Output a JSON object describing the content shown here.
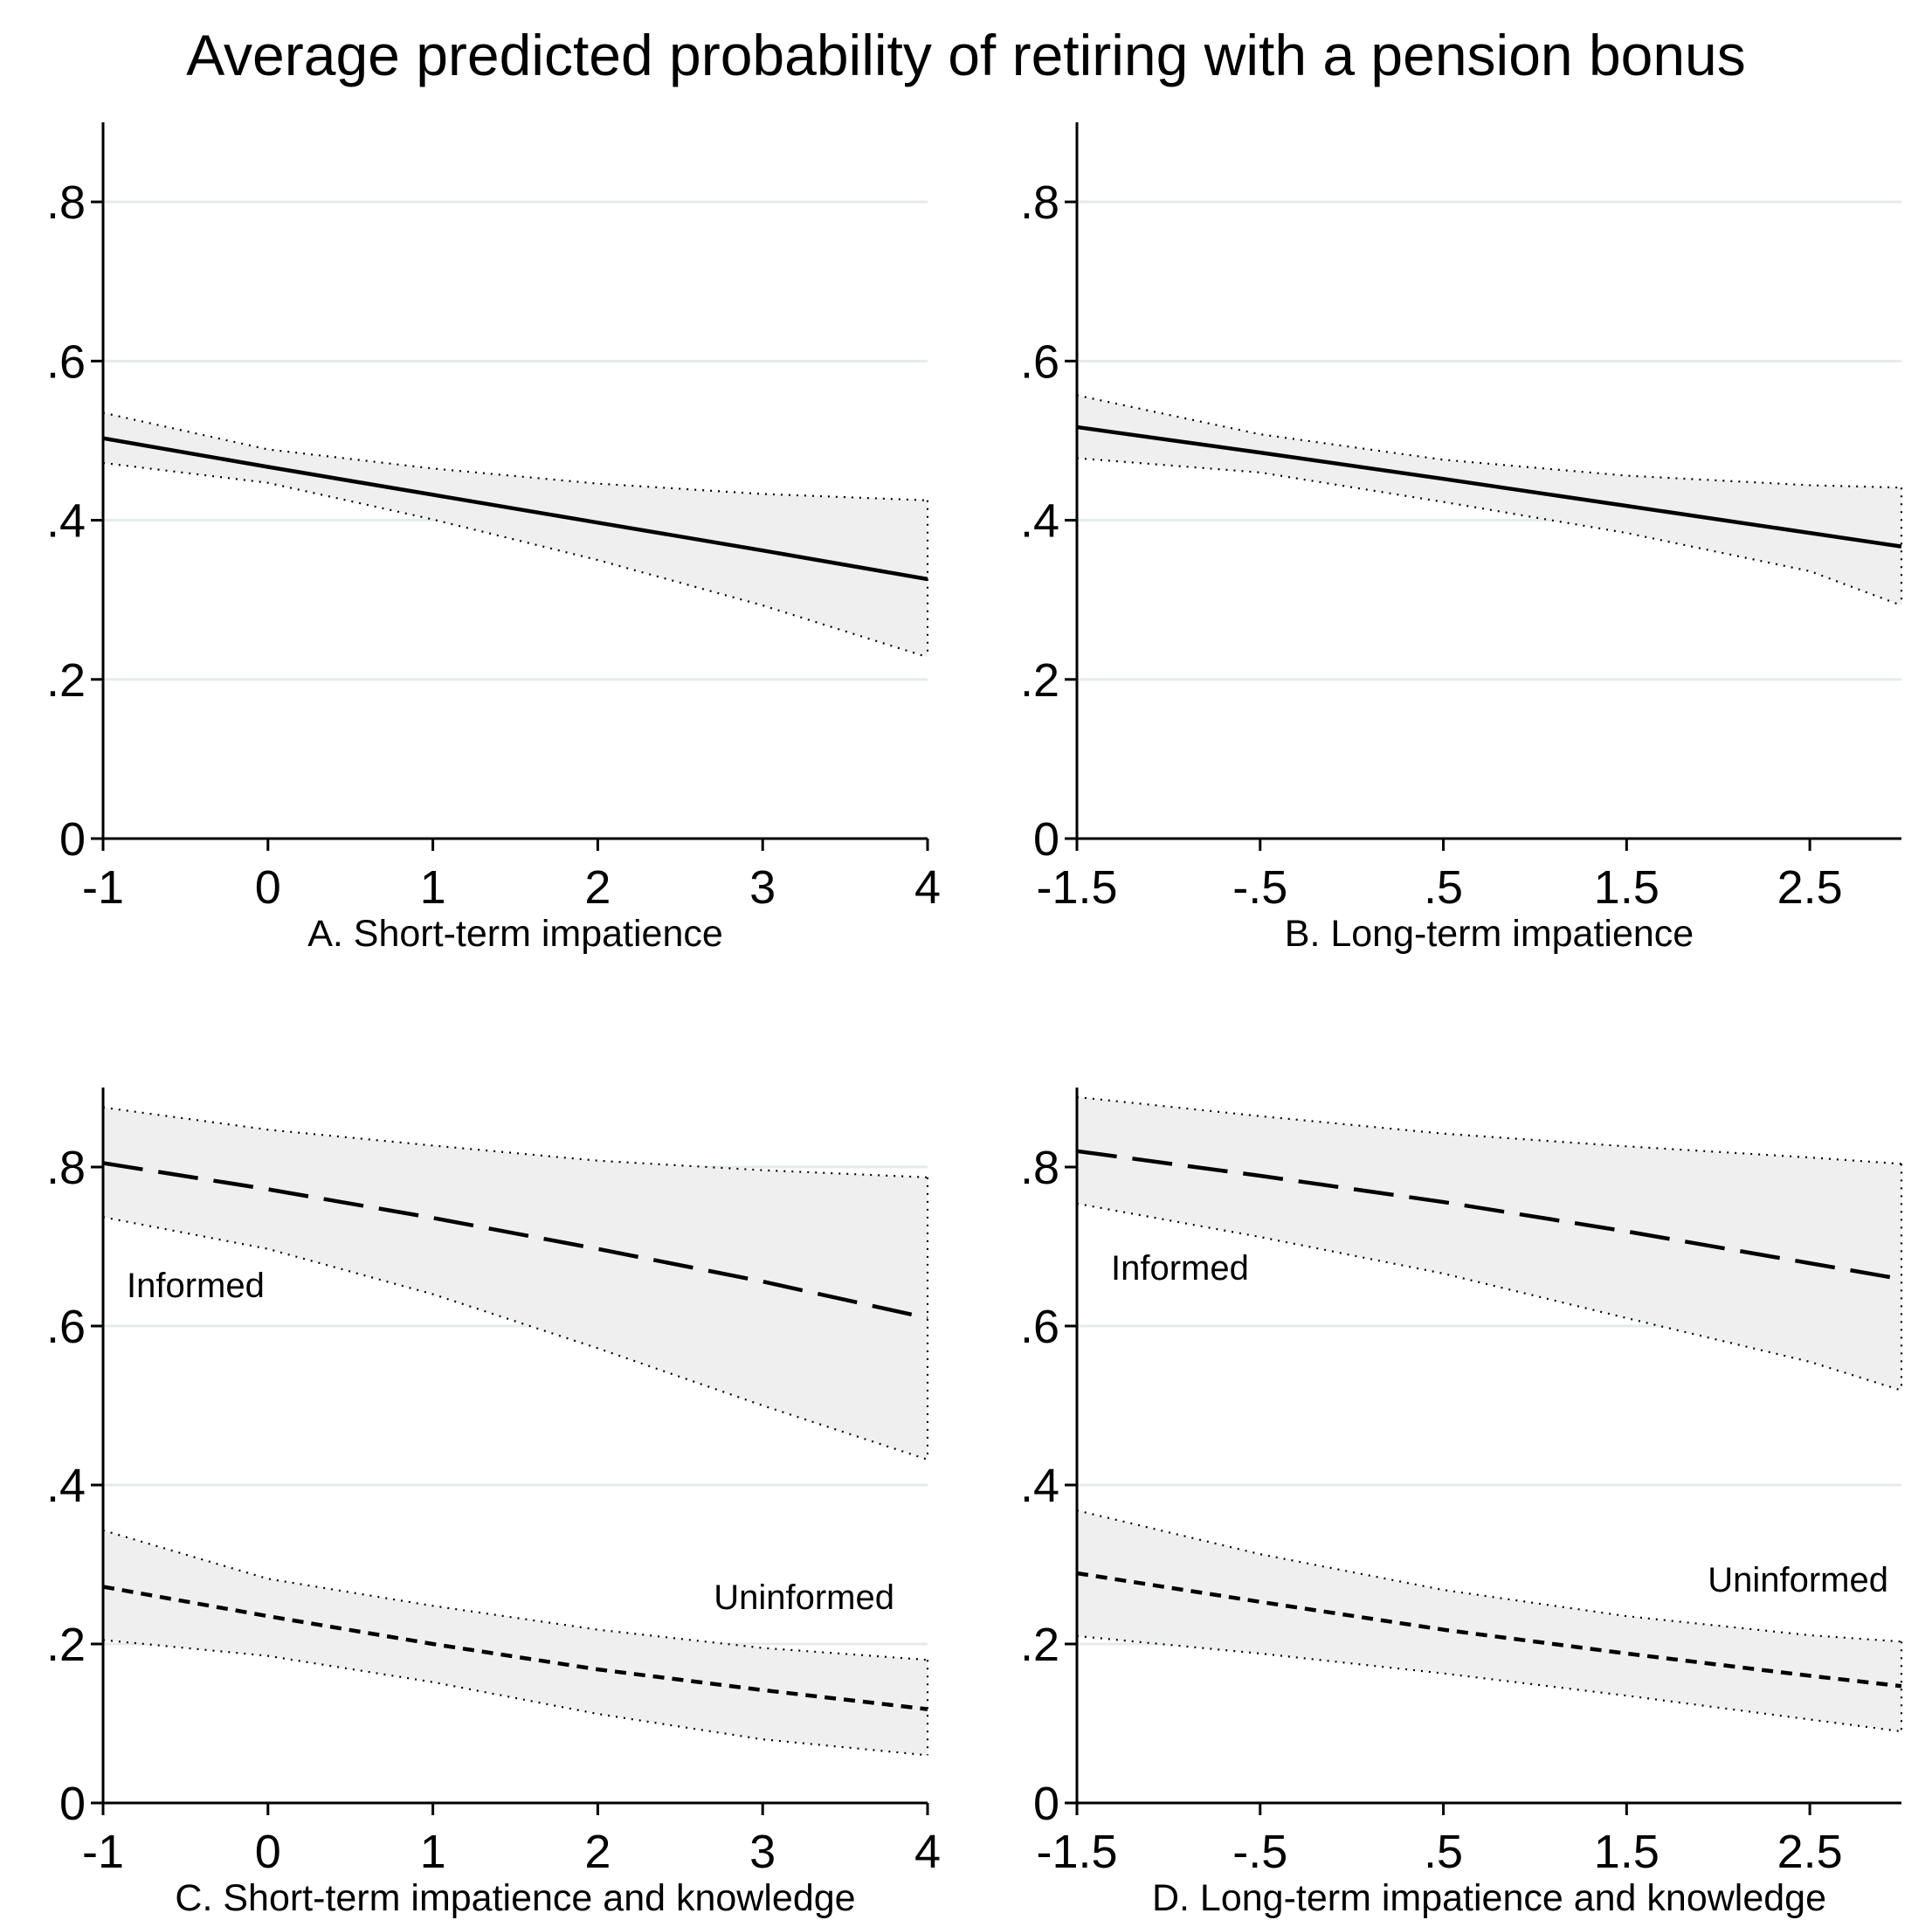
{
  "title": "Average predicted probability of retiring with a pension bonus",
  "chart_data": [
    {
      "type": "line",
      "panel": "A",
      "xlabel": "A. Short-term impatience",
      "ylabel": "",
      "xlim": [
        -1,
        4
      ],
      "ylim": [
        0,
        0.9
      ],
      "xticks": [
        -1,
        0,
        1,
        2,
        3,
        4
      ],
      "xtick_labels": [
        "-1",
        "0",
        "1",
        "2",
        "3",
        "4"
      ],
      "yticks": [
        0,
        0.2,
        0.4,
        0.6,
        0.8
      ],
      "ytick_labels": [
        "0",
        ".2",
        ".4",
        ".6",
        ".8"
      ],
      "grid": true,
      "series": [
        {
          "style": "solid",
          "x": [
            -1,
            0,
            1,
            2,
            3,
            4
          ],
          "values": [
            0.503,
            0.467,
            0.432,
            0.397,
            0.362,
            0.326
          ],
          "ci_lower": [
            0.472,
            0.447,
            0.401,
            0.35,
            0.293,
            0.228
          ],
          "ci_upper": [
            0.535,
            0.489,
            0.465,
            0.446,
            0.433,
            0.425
          ]
        }
      ]
    },
    {
      "type": "line",
      "panel": "B",
      "xlabel": "B. Long-term impatience",
      "ylabel": "",
      "xlim": [
        -1.5,
        3
      ],
      "ylim": [
        0,
        0.9
      ],
      "xticks": [
        -1.5,
        -0.5,
        0.5,
        1.5,
        2.5
      ],
      "xtick_labels": [
        "-1.5",
        "-.5",
        ".5",
        "1.5",
        "2.5"
      ],
      "yticks": [
        0,
        0.2,
        0.4,
        0.6,
        0.8
      ],
      "ytick_labels": [
        "0",
        ".2",
        ".4",
        ".6",
        ".8"
      ],
      "grid": true,
      "series": [
        {
          "style": "solid",
          "x": [
            -1.5,
            -0.5,
            0.5,
            1.5,
            2.5,
            3
          ],
          "values": [
            0.517,
            0.485,
            0.452,
            0.418,
            0.384,
            0.367
          ],
          "ci_lower": [
            0.478,
            0.46,
            0.423,
            0.384,
            0.336,
            0.293
          ],
          "ci_upper": [
            0.557,
            0.508,
            0.476,
            0.456,
            0.444,
            0.441
          ]
        }
      ]
    },
    {
      "type": "line",
      "panel": "C",
      "xlabel": "C. Short-term impatience and knowledge",
      "ylabel": "",
      "xlim": [
        -1,
        4
      ],
      "ylim": [
        0,
        0.9
      ],
      "xticks": [
        -1,
        0,
        1,
        2,
        3,
        4
      ],
      "xtick_labels": [
        "-1",
        "0",
        "1",
        "2",
        "3",
        "4"
      ],
      "yticks": [
        0,
        0.2,
        0.4,
        0.6,
        0.8
      ],
      "ytick_labels": [
        "0",
        ".2",
        ".4",
        ".6",
        ".8"
      ],
      "grid": true,
      "series": [
        {
          "label": "Informed",
          "style": "longdash",
          "x": [
            -1,
            0,
            1,
            2,
            3,
            4
          ],
          "values": [
            0.805,
            0.772,
            0.736,
            0.697,
            0.656,
            0.61
          ],
          "ci_lower": [
            0.737,
            0.697,
            0.64,
            0.572,
            0.5,
            0.432
          ],
          "ci_upper": [
            0.875,
            0.847,
            0.827,
            0.808,
            0.796,
            0.787
          ]
        },
        {
          "label": "Uninformed",
          "style": "shortdash",
          "x": [
            -1,
            0,
            1,
            2,
            3,
            4
          ],
          "values": [
            0.272,
            0.235,
            0.2,
            0.168,
            0.142,
            0.118
          ],
          "ci_lower": [
            0.205,
            0.185,
            0.152,
            0.112,
            0.08,
            0.06
          ],
          "ci_upper": [
            0.343,
            0.282,
            0.248,
            0.218,
            0.195,
            0.18
          ]
        }
      ]
    },
    {
      "type": "line",
      "panel": "D",
      "xlabel": "D. Long-term impatience and knowledge",
      "ylabel": "",
      "xlim": [
        -1.5,
        3
      ],
      "ylim": [
        0,
        0.9
      ],
      "xticks": [
        -1.5,
        -0.5,
        0.5,
        1.5,
        2.5
      ],
      "xtick_labels": [
        "-1.5",
        "-.5",
        ".5",
        "1.5",
        "2.5"
      ],
      "yticks": [
        0,
        0.2,
        0.4,
        0.6,
        0.8
      ],
      "ytick_labels": [
        "0",
        ".2",
        ".4",
        ".6",
        ".8"
      ],
      "grid": true,
      "series": [
        {
          "label": "Informed",
          "style": "longdash",
          "x": [
            -1.5,
            -0.5,
            0.5,
            1.5,
            2.5,
            3
          ],
          "values": [
            0.82,
            0.789,
            0.756,
            0.719,
            0.679,
            0.659
          ],
          "ci_lower": [
            0.754,
            0.712,
            0.666,
            0.61,
            0.555,
            0.519
          ],
          "ci_upper": [
            0.888,
            0.864,
            0.842,
            0.826,
            0.812,
            0.804
          ]
        },
        {
          "label": "Uninformed",
          "style": "shortdash",
          "x": [
            -1.5,
            -0.5,
            0.5,
            1.5,
            2.5,
            3
          ],
          "values": [
            0.289,
            0.253,
            0.218,
            0.188,
            0.16,
            0.147
          ],
          "ci_lower": [
            0.21,
            0.188,
            0.163,
            0.135,
            0.105,
            0.09
          ],
          "ci_upper": [
            0.368,
            0.313,
            0.268,
            0.235,
            0.211,
            0.203
          ]
        }
      ]
    }
  ]
}
